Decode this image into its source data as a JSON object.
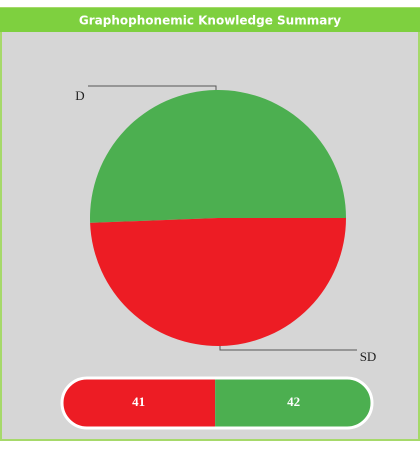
{
  "chart_data": {
    "type": "pie",
    "title": "Graphophonemic Knowledge Summary",
    "categories": [
      "D",
      "SD"
    ],
    "values": [
      42,
      41
    ],
    "colors": [
      "#4caf50",
      "#ed1c24"
    ]
  }
}
